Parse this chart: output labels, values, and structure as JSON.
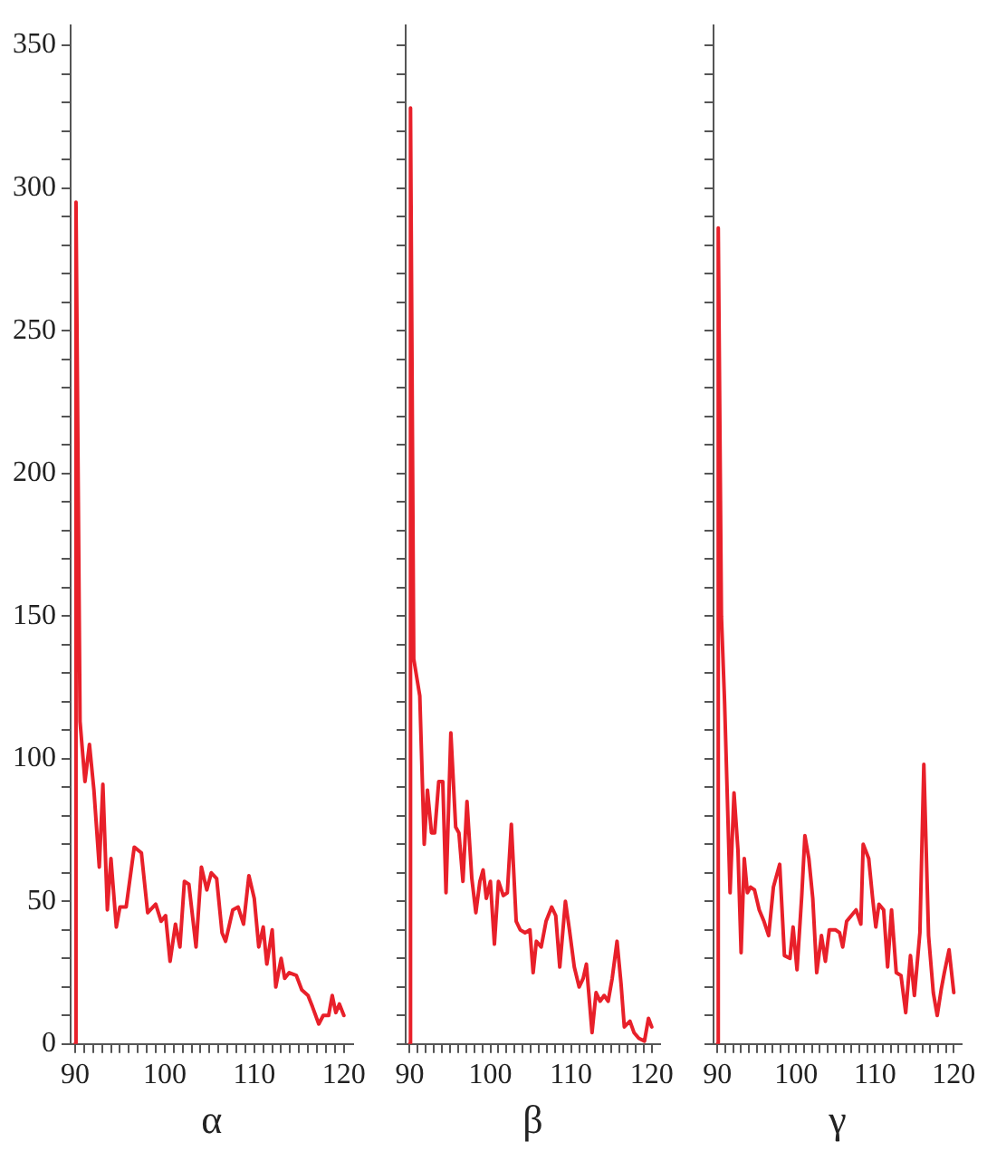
{
  "chart_data": [
    {
      "type": "line",
      "xlabel": "α",
      "xlim": [
        89.5,
        121
      ],
      "ylim": [
        0,
        357
      ],
      "xticks": [
        90,
        {
          "value": 91,
          "label": null
        },
        {
          "value": 92,
          "label": null
        },
        {
          "value": 93,
          "label": null
        },
        {
          "value": 94,
          "label": null
        },
        {
          "value": 95,
          "label": null
        },
        {
          "value": 96,
          "label": null
        },
        {
          "value": 97,
          "label": null
        },
        {
          "value": 98,
          "label": null
        },
        {
          "value": 99,
          "label": null
        },
        100,
        {
          "value": 101,
          "label": null
        },
        {
          "value": 102,
          "label": null
        },
        {
          "value": 103,
          "label": null
        },
        {
          "value": 104,
          "label": null
        },
        {
          "value": 105,
          "label": null
        },
        {
          "value": 106,
          "label": null
        },
        {
          "value": 107,
          "label": null
        },
        {
          "value": 108,
          "label": null
        },
        {
          "value": 109,
          "label": null
        },
        110,
        {
          "value": 111,
          "label": null
        },
        {
          "value": 112,
          "label": null
        },
        {
          "value": 113,
          "label": null
        },
        {
          "value": 114,
          "label": null
        },
        {
          "value": 115,
          "label": null
        },
        {
          "value": 116,
          "label": null
        },
        {
          "value": 117,
          "label": null
        },
        {
          "value": 118,
          "label": null
        },
        {
          "value": 119,
          "label": null
        },
        120
      ],
      "yticks": [
        0,
        {
          "value": 10,
          "label": null
        },
        {
          "value": 20,
          "label": null
        },
        {
          "value": 30,
          "label": null
        },
        {
          "value": 40,
          "label": null
        },
        50,
        {
          "value": 60,
          "label": null
        },
        {
          "value": 70,
          "label": null
        },
        {
          "value": 80,
          "label": null
        },
        {
          "value": 90,
          "label": null
        },
        100,
        {
          "value": 110,
          "label": null
        },
        {
          "value": 120,
          "label": null
        },
        {
          "value": 130,
          "label": null
        },
        {
          "value": 140,
          "label": null
        },
        150,
        {
          "value": 160,
          "label": null
        },
        {
          "value": 170,
          "label": null
        },
        {
          "value": 180,
          "label": null
        },
        {
          "value": 190,
          "label": null
        },
        200,
        {
          "value": 210,
          "label": null
        },
        {
          "value": 220,
          "label": null
        },
        {
          "value": 230,
          "label": null
        },
        {
          "value": 240,
          "label": null
        },
        250,
        {
          "value": 260,
          "label": null
        },
        {
          "value": 270,
          "label": null
        },
        {
          "value": 280,
          "label": null
        },
        {
          "value": 290,
          "label": null
        },
        300,
        {
          "value": 310,
          "label": null
        },
        {
          "value": 320,
          "label": null
        },
        {
          "value": 330,
          "label": null
        },
        {
          "value": 340,
          "label": null
        },
        350
      ],
      "grid": false,
      "legend": false,
      "series": [
        {
          "color": "#e8202a",
          "x": [
            90,
            90.1,
            90.55,
            91.1,
            91.6,
            92.1,
            92.7,
            93.1,
            93.6,
            94,
            94.6,
            95,
            95.7,
            96.6,
            97.4,
            98.1,
            99,
            99.6,
            100.1,
            100.6,
            101.2,
            101.7,
            102.2,
            102.7,
            103.5,
            104.1,
            104.7,
            105.2,
            105.8,
            106.4,
            106.8,
            107.6,
            108.2,
            108.8,
            109.4,
            110,
            110.5,
            111,
            111.4,
            112,
            112.4,
            113,
            113.4,
            113.9,
            114.7,
            115.3,
            116,
            116.5,
            117.2,
            117.7,
            118.3,
            118.7,
            119.1,
            119.5,
            120
          ],
          "values": [
            0,
            295,
            113,
            92,
            105,
            89,
            62,
            91,
            47,
            65,
            41,
            48,
            48,
            69,
            67,
            46,
            49,
            43,
            45,
            29,
            42,
            34,
            57,
            56,
            34,
            62,
            54,
            60,
            58,
            39,
            36,
            47,
            48,
            42,
            59,
            51,
            34,
            41,
            28,
            40,
            20,
            30,
            23,
            25,
            24,
            19,
            17,
            13,
            7,
            10,
            10,
            17,
            11,
            14,
            10
          ]
        }
      ]
    },
    {
      "type": "line",
      "xlabel": "β",
      "xlim": [
        89.5,
        121
      ],
      "ylim": [
        0,
        357
      ],
      "tick_labels": "x",
      "xticks": [
        90,
        {
          "value": 91,
          "label": null
        },
        {
          "value": 92,
          "label": null
        },
        {
          "value": 93,
          "label": null
        },
        {
          "value": 94,
          "label": null
        },
        {
          "value": 95,
          "label": null
        },
        {
          "value": 96,
          "label": null
        },
        {
          "value": 97,
          "label": null
        },
        {
          "value": 98,
          "label": null
        },
        {
          "value": 99,
          "label": null
        },
        100,
        {
          "value": 101,
          "label": null
        },
        {
          "value": 102,
          "label": null
        },
        {
          "value": 103,
          "label": null
        },
        {
          "value": 104,
          "label": null
        },
        {
          "value": 105,
          "label": null
        },
        {
          "value": 106,
          "label": null
        },
        {
          "value": 107,
          "label": null
        },
        {
          "value": 108,
          "label": null
        },
        {
          "value": 109,
          "label": null
        },
        110,
        {
          "value": 111,
          "label": null
        },
        {
          "value": 112,
          "label": null
        },
        {
          "value": 113,
          "label": null
        },
        {
          "value": 114,
          "label": null
        },
        {
          "value": 115,
          "label": null
        },
        {
          "value": 116,
          "label": null
        },
        {
          "value": 117,
          "label": null
        },
        {
          "value": 118,
          "label": null
        },
        {
          "value": 119,
          "label": null
        },
        120
      ],
      "yticks": [
        0,
        {
          "value": 10,
          "label": null
        },
        {
          "value": 20,
          "label": null
        },
        {
          "value": 30,
          "label": null
        },
        {
          "value": 40,
          "label": null
        },
        50,
        {
          "value": 60,
          "label": null
        },
        {
          "value": 70,
          "label": null
        },
        {
          "value": 80,
          "label": null
        },
        {
          "value": 90,
          "label": null
        },
        100,
        {
          "value": 110,
          "label": null
        },
        {
          "value": 120,
          "label": null
        },
        {
          "value": 130,
          "label": null
        },
        {
          "value": 140,
          "label": null
        },
        150,
        {
          "value": 160,
          "label": null
        },
        {
          "value": 170,
          "label": null
        },
        {
          "value": 180,
          "label": null
        },
        {
          "value": 190,
          "label": null
        },
        200,
        {
          "value": 210,
          "label": null
        },
        {
          "value": 220,
          "label": null
        },
        {
          "value": 230,
          "label": null
        },
        {
          "value": 240,
          "label": null
        },
        250,
        {
          "value": 260,
          "label": null
        },
        {
          "value": 270,
          "label": null
        },
        {
          "value": 280,
          "label": null
        },
        {
          "value": 290,
          "label": null
        },
        300,
        {
          "value": 310,
          "label": null
        },
        {
          "value": 320,
          "label": null
        },
        {
          "value": 330,
          "label": null
        },
        {
          "value": 340,
          "label": null
        },
        350
      ],
      "grid": false,
      "legend": false,
      "series": [
        {
          "color": "#e8202a",
          "x": [
            90,
            90.1,
            90.5,
            91.25,
            91.8,
            92.2,
            92.7,
            93.1,
            93.6,
            94.1,
            94.5,
            95.1,
            95.7,
            96.1,
            96.6,
            97.1,
            97.7,
            98.2,
            98.7,
            99.1,
            99.5,
            100,
            100.5,
            101,
            101.6,
            102.1,
            102.6,
            103.2,
            103.7,
            104.3,
            104.9,
            105.3,
            105.7,
            106.3,
            106.9,
            107.6,
            108.1,
            108.6,
            109.3,
            109.8,
            110.4,
            111,
            111.5,
            111.9,
            112.6,
            113.1,
            113.6,
            114.1,
            114.6,
            115.1,
            115.7,
            116.2,
            116.6,
            117.3,
            117.8,
            118.4,
            119.1,
            119.6,
            120
          ],
          "values": [
            0,
            328,
            135,
            122,
            70,
            89,
            74,
            74,
            92,
            92,
            53,
            109,
            76,
            74,
            57,
            85,
            58,
            46,
            57,
            61,
            51,
            57,
            35,
            57,
            52,
            53,
            77,
            43,
            40,
            39,
            40,
            25,
            36,
            34,
            43,
            48,
            45,
            27,
            50,
            40,
            27,
            20,
            23,
            28,
            4,
            18,
            15,
            17,
            15,
            23,
            36,
            21,
            6,
            8,
            4,
            2,
            1,
            9,
            6
          ]
        }
      ]
    },
    {
      "type": "line",
      "xlabel": "γ",
      "xlim": [
        89.5,
        121
      ],
      "ylim": [
        0,
        357
      ],
      "tick_labels": "x",
      "xticks": [
        90,
        {
          "value": 91,
          "label": null
        },
        {
          "value": 92,
          "label": null
        },
        {
          "value": 93,
          "label": null
        },
        {
          "value": 94,
          "label": null
        },
        {
          "value": 95,
          "label": null
        },
        {
          "value": 96,
          "label": null
        },
        {
          "value": 97,
          "label": null
        },
        {
          "value": 98,
          "label": null
        },
        {
          "value": 99,
          "label": null
        },
        100,
        {
          "value": 101,
          "label": null
        },
        {
          "value": 102,
          "label": null
        },
        {
          "value": 103,
          "label": null
        },
        {
          "value": 104,
          "label": null
        },
        {
          "value": 105,
          "label": null
        },
        {
          "value": 106,
          "label": null
        },
        {
          "value": 107,
          "label": null
        },
        {
          "value": 108,
          "label": null
        },
        {
          "value": 109,
          "label": null
        },
        110,
        {
          "value": 111,
          "label": null
        },
        {
          "value": 112,
          "label": null
        },
        {
          "value": 113,
          "label": null
        },
        {
          "value": 114,
          "label": null
        },
        {
          "value": 115,
          "label": null
        },
        {
          "value": 116,
          "label": null
        },
        {
          "value": 117,
          "label": null
        },
        {
          "value": 118,
          "label": null
        },
        {
          "value": 119,
          "label": null
        },
        120
      ],
      "yticks": [
        0,
        {
          "value": 10,
          "label": null
        },
        {
          "value": 20,
          "label": null
        },
        {
          "value": 30,
          "label": null
        },
        {
          "value": 40,
          "label": null
        },
        50,
        {
          "value": 60,
          "label": null
        },
        {
          "value": 70,
          "label": null
        },
        {
          "value": 80,
          "label": null
        },
        {
          "value": 90,
          "label": null
        },
        100,
        {
          "value": 110,
          "label": null
        },
        {
          "value": 120,
          "label": null
        },
        {
          "value": 130,
          "label": null
        },
        {
          "value": 140,
          "label": null
        },
        150,
        {
          "value": 160,
          "label": null
        },
        {
          "value": 170,
          "label": null
        },
        {
          "value": 180,
          "label": null
        },
        {
          "value": 190,
          "label": null
        },
        200,
        {
          "value": 210,
          "label": null
        },
        {
          "value": 220,
          "label": null
        },
        {
          "value": 230,
          "label": null
        },
        {
          "value": 240,
          "label": null
        },
        250,
        {
          "value": 260,
          "label": null
        },
        {
          "value": 270,
          "label": null
        },
        {
          "value": 280,
          "label": null
        },
        {
          "value": 290,
          "label": null
        },
        300,
        {
          "value": 310,
          "label": null
        },
        {
          "value": 320,
          "label": null
        },
        {
          "value": 330,
          "label": null
        },
        {
          "value": 340,
          "label": null
        },
        350
      ],
      "grid": false,
      "legend": false,
      "series": [
        {
          "color": "#e8202a",
          "x": [
            90,
            90.1,
            90.5,
            90.9,
            91.6,
            92.1,
            92.6,
            93,
            93.4,
            93.8,
            94.2,
            94.7,
            95.3,
            95.9,
            96.5,
            97.1,
            97.9,
            98.5,
            99.2,
            99.6,
            100.1,
            100.7,
            101.1,
            101.6,
            102.1,
            102.6,
            103.2,
            103.7,
            104.2,
            105,
            105.5,
            105.9,
            106.4,
            107,
            107.6,
            108.2,
            108.5,
            109.2,
            109.7,
            110.1,
            110.5,
            111.1,
            111.6,
            112.1,
            112.7,
            113.3,
            113.9,
            114.5,
            115,
            115.7,
            116.2,
            116.8,
            117.4,
            117.9,
            118.4,
            118.8,
            119.4,
            120
          ],
          "values": [
            0,
            286,
            150,
            120,
            53,
            88,
            68,
            32,
            65,
            53,
            55,
            54,
            47,
            43,
            38,
            55,
            63,
            31,
            30,
            41,
            26,
            52,
            73,
            65,
            51,
            25,
            38,
            29,
            40,
            40,
            39,
            34,
            43,
            45,
            47,
            42,
            70,
            65,
            51,
            41,
            49,
            47,
            27,
            47,
            25,
            24,
            11,
            31,
            17,
            39,
            98,
            38,
            18,
            10,
            19,
            25,
            33,
            18
          ]
        }
      ]
    }
  ]
}
